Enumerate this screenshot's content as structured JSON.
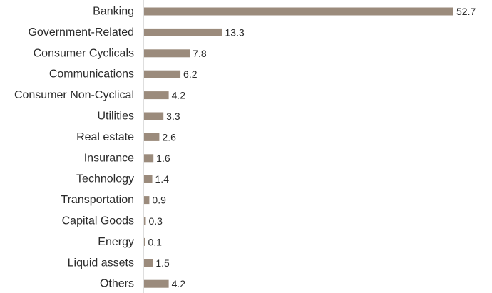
{
  "chart_data": {
    "type": "bar",
    "orientation": "horizontal",
    "categories": [
      "Banking",
      "Government-Related",
      "Consumer Cyclicals",
      "Communications",
      "Consumer Non-Cyclical",
      "Utilities",
      "Real estate",
      "Insurance",
      "Technology",
      "Transportation",
      "Capital Goods",
      "Energy",
      "Liquid assets",
      "Others"
    ],
    "values": [
      52.7,
      13.3,
      7.8,
      6.2,
      4.2,
      3.3,
      2.6,
      1.6,
      1.4,
      0.9,
      0.3,
      0.1,
      1.5,
      4.2
    ],
    "value_labels": [
      "52.7",
      "13.3",
      "7.8",
      "6.2",
      "4.2",
      "3.3",
      "2.6",
      "1.6",
      "1.4",
      "0.9",
      "0.3",
      "0.1",
      "1.5",
      "4.2"
    ],
    "title": "",
    "xlabel": "",
    "ylabel": "",
    "xlim": [
      0,
      52.7
    ],
    "grid": false,
    "legend": "none",
    "colors": {
      "bar": "#9b8b7c",
      "axis": "#bdbdbd",
      "text": "#2b2b2b"
    }
  }
}
